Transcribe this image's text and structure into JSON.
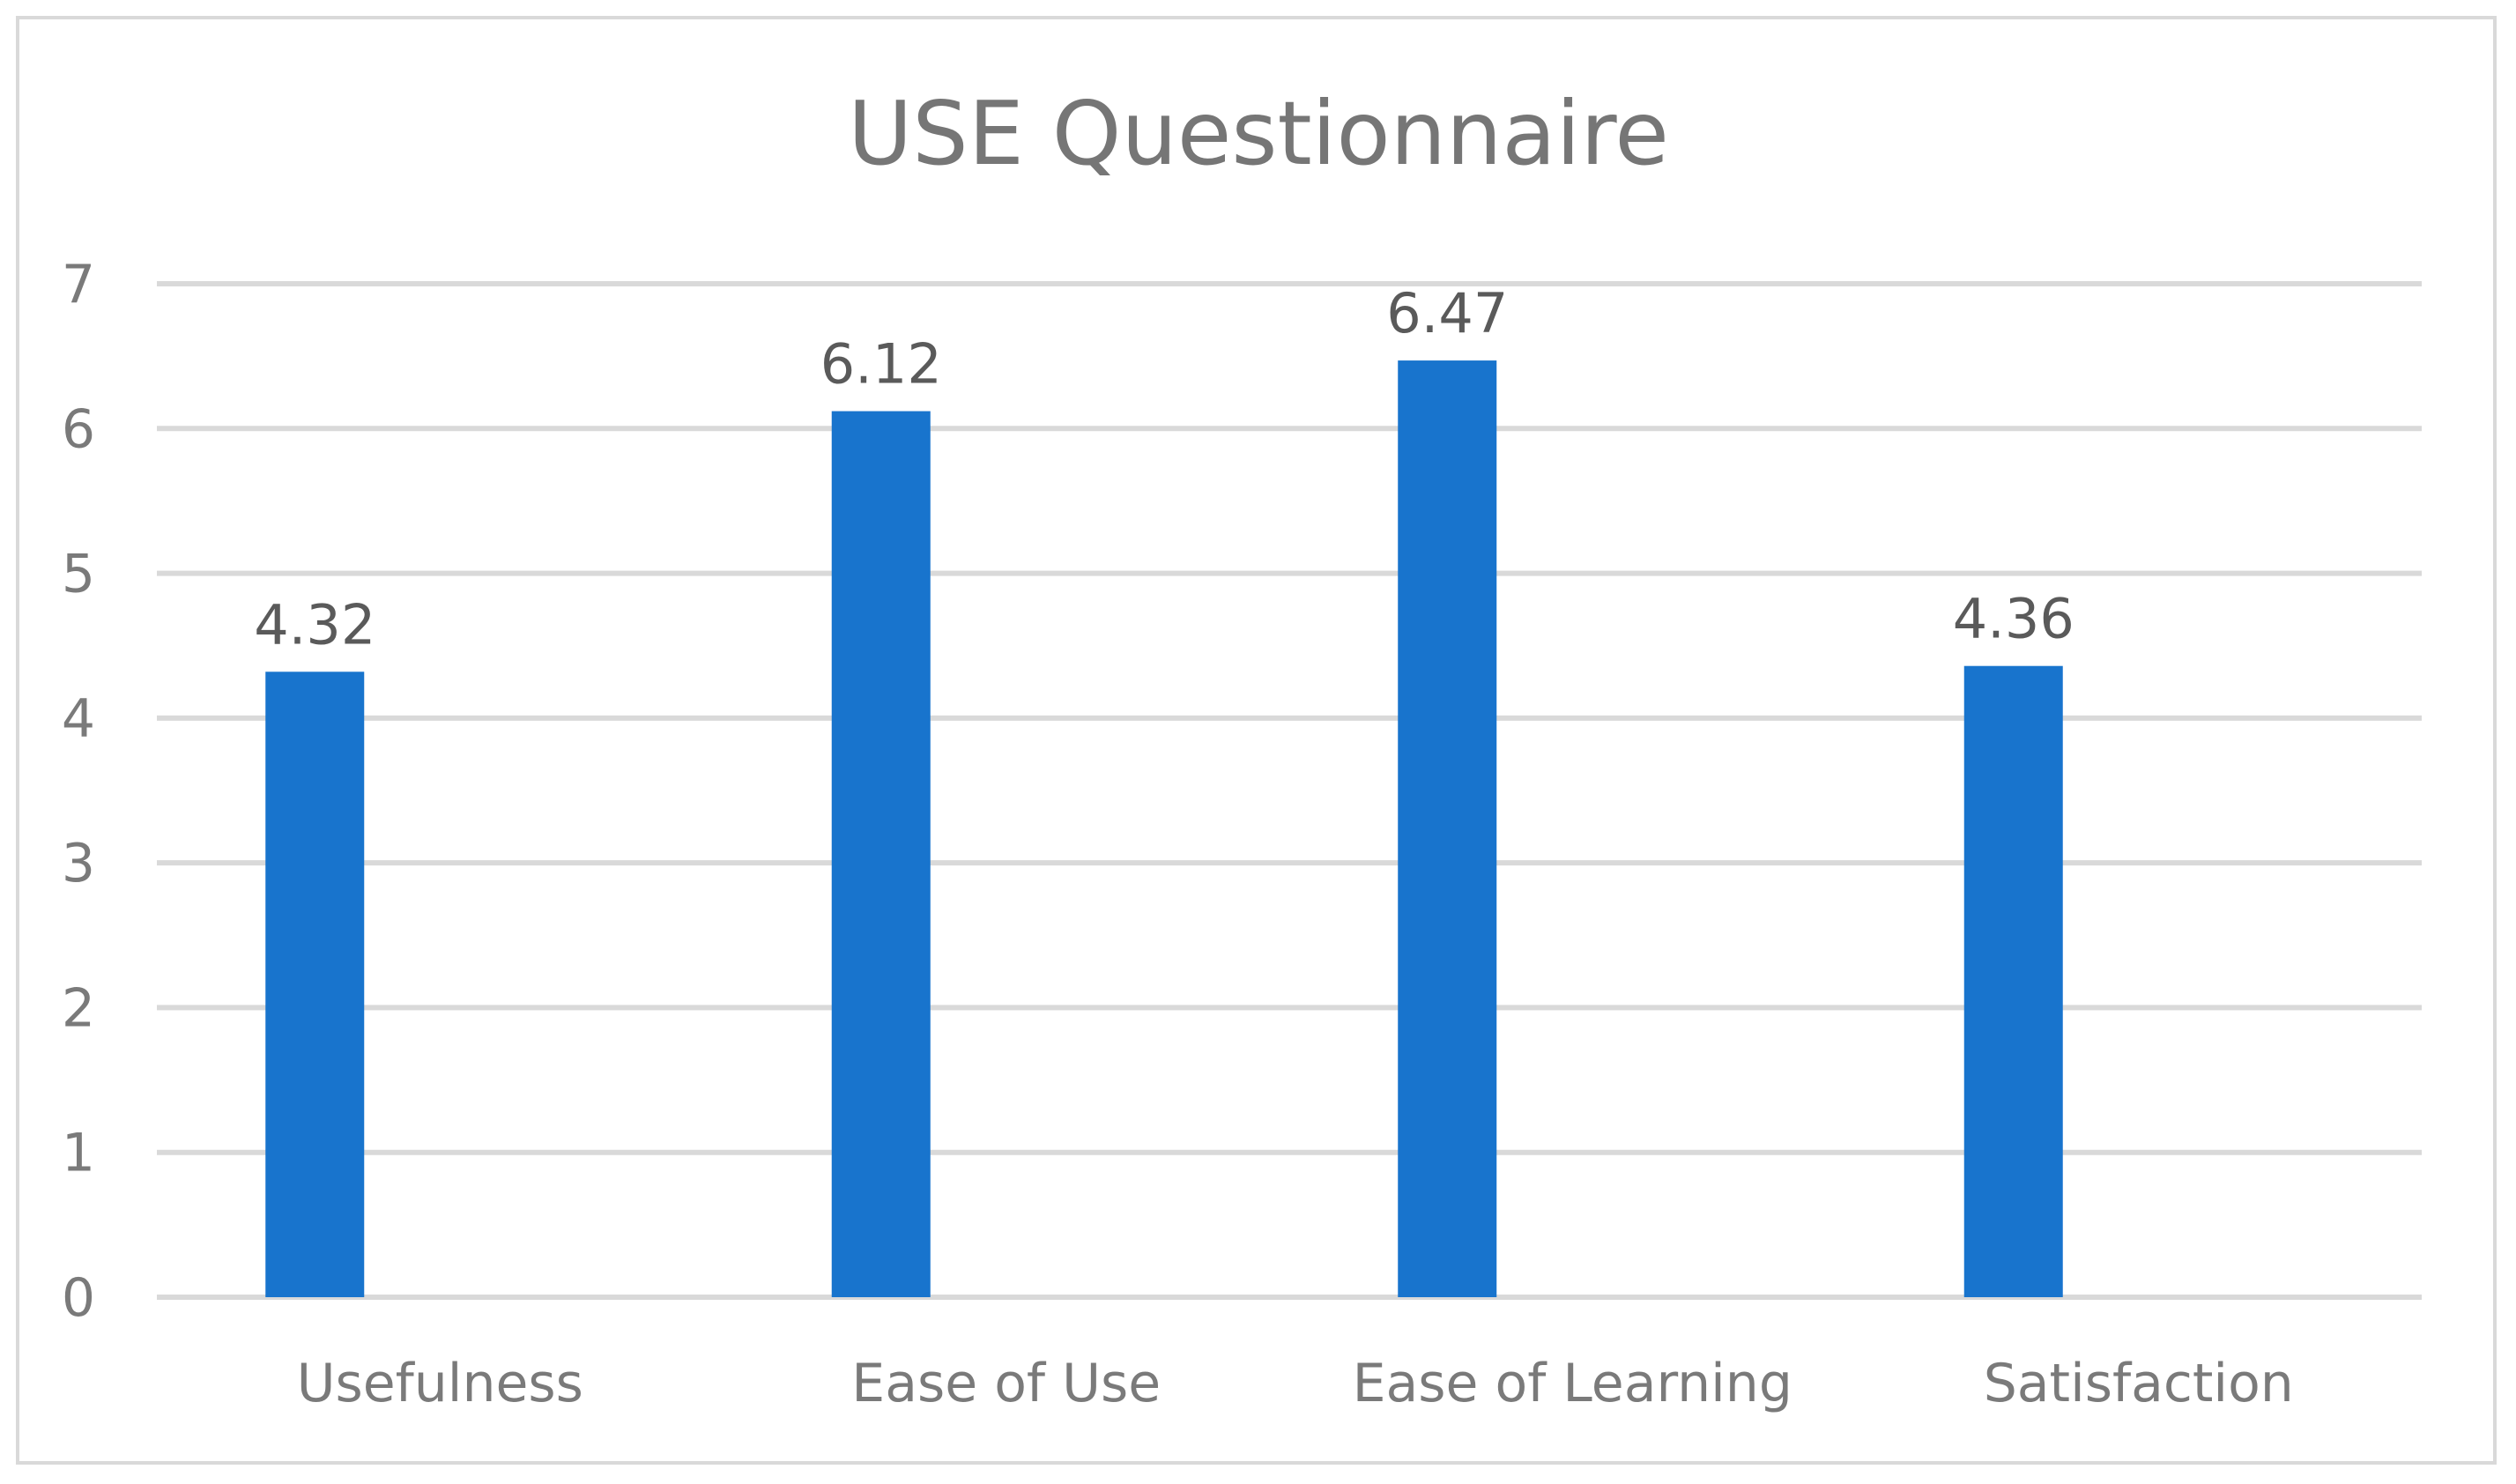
{
  "chart_data": {
    "type": "bar",
    "title": "USE Questionnaire",
    "categories": [
      "Usefulness",
      "Ease of Use",
      "Ease of Learning",
      "Satisfaction"
    ],
    "values": [
      4.32,
      6.12,
      6.47,
      4.36
    ],
    "data_labels": [
      "4.32",
      "6.12",
      "6.47",
      "4.36"
    ],
    "ylim": [
      0,
      7
    ],
    "yticks": [
      0,
      1,
      2,
      3,
      4,
      5,
      6,
      7
    ],
    "grid": true,
    "legend": "none",
    "bar_color": "#1874cd"
  }
}
